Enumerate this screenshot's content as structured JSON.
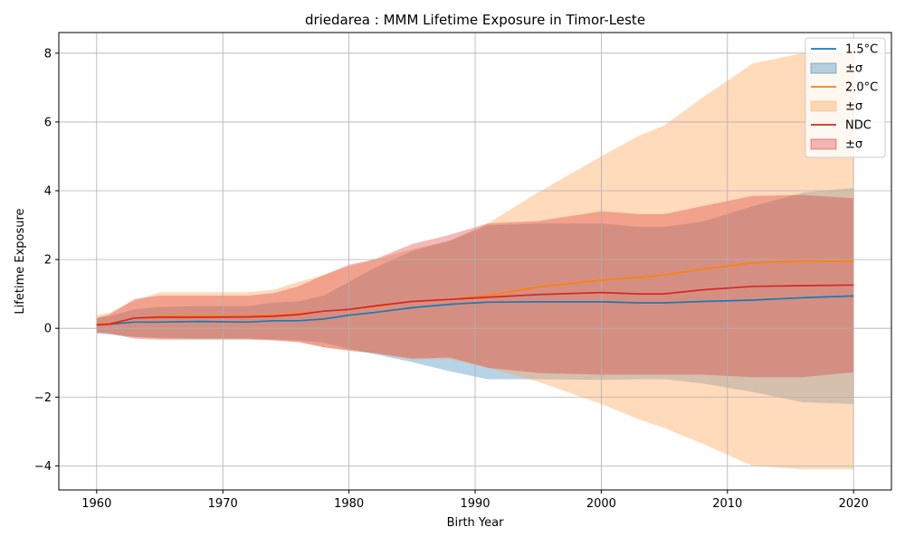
{
  "chart_data": {
    "type": "line",
    "title": "driedarea : MMM Lifetime Exposure in Timor-Leste",
    "xlabel": "Birth Year",
    "ylabel": "Lifetime Exposure",
    "xlim": [
      1957,
      2023
    ],
    "ylim": [
      -4.7,
      8.6
    ],
    "xticks": [
      1960,
      1970,
      1980,
      1990,
      2000,
      2010,
      2020
    ],
    "yticks": [
      -4,
      -2,
      0,
      2,
      4,
      6,
      8
    ],
    "grid": true,
    "legend_position": "top-right",
    "series": [
      {
        "name": "1.5°C",
        "band_label": "±σ",
        "color": "#1f77b4",
        "band_color": "#1f77b4",
        "x": [
          1960,
          1961,
          1963,
          1965,
          1968,
          1972,
          1974,
          1976,
          1978,
          1980,
          1982,
          1985,
          1988,
          1991,
          1995,
          2000,
          2003,
          2005,
          2008,
          2012,
          2016,
          2020
        ],
        "y": [
          0.1,
          0.12,
          0.18,
          0.18,
          0.2,
          0.18,
          0.22,
          0.22,
          0.27,
          0.38,
          0.46,
          0.6,
          0.7,
          0.76,
          0.77,
          0.77,
          0.74,
          0.74,
          0.78,
          0.82,
          0.89,
          0.94
        ],
        "upper": [
          0.3,
          0.35,
          0.55,
          0.62,
          0.65,
          0.65,
          0.75,
          0.78,
          0.95,
          1.35,
          1.75,
          2.25,
          2.55,
          3.0,
          3.05,
          3.05,
          2.95,
          2.95,
          3.1,
          3.55,
          3.95,
          4.08
        ],
        "lower": [
          -0.15,
          -0.18,
          -0.25,
          -0.28,
          -0.3,
          -0.3,
          -0.32,
          -0.35,
          -0.42,
          -0.6,
          -0.75,
          -0.98,
          -1.25,
          -1.48,
          -1.48,
          -1.5,
          -1.48,
          -1.48,
          -1.6,
          -1.85,
          -2.15,
          -2.2
        ]
      },
      {
        "name": "2.0°C",
        "band_label": "±σ",
        "color": "#ff7f0e",
        "band_color": "#ffa65c",
        "x": [
          1960,
          1961,
          1963,
          1965,
          1968,
          1972,
          1974,
          1976,
          1978,
          1980,
          1982,
          1985,
          1988,
          1991,
          1995,
          2000,
          2003,
          2005,
          2008,
          2012,
          2016,
          2020
        ],
        "y": [
          0.12,
          0.14,
          0.3,
          0.35,
          0.36,
          0.36,
          0.38,
          0.43,
          0.5,
          0.55,
          0.63,
          0.78,
          0.84,
          0.95,
          1.2,
          1.4,
          1.48,
          1.55,
          1.72,
          1.9,
          1.96,
          1.95
        ],
        "upper": [
          0.38,
          0.45,
          0.8,
          1.05,
          1.05,
          1.05,
          1.12,
          1.35,
          1.55,
          1.8,
          2.0,
          2.3,
          2.55,
          3.05,
          3.95,
          5.0,
          5.6,
          5.9,
          6.7,
          7.7,
          8.0,
          8.0
        ],
        "lower": [
          -0.12,
          -0.15,
          -0.25,
          -0.3,
          -0.3,
          -0.3,
          -0.35,
          -0.4,
          -0.55,
          -0.65,
          -0.72,
          -0.9,
          -0.9,
          -1.15,
          -1.55,
          -2.2,
          -2.65,
          -2.9,
          -3.35,
          -4.0,
          -4.1,
          -4.1
        ]
      },
      {
        "name": "NDC",
        "band_label": "±σ",
        "color": "#d62728",
        "band_color": "#d62728",
        "x": [
          1960,
          1961,
          1963,
          1965,
          1968,
          1972,
          1974,
          1976,
          1978,
          1980,
          1982,
          1985,
          1988,
          1991,
          1995,
          2000,
          2003,
          2005,
          2008,
          2012,
          2016,
          2020
        ],
        "y": [
          0.1,
          0.12,
          0.3,
          0.32,
          0.32,
          0.33,
          0.35,
          0.4,
          0.5,
          0.55,
          0.65,
          0.78,
          0.84,
          0.9,
          0.98,
          1.04,
          1.0,
          1.0,
          1.12,
          1.22,
          1.24,
          1.26
        ],
        "upper": [
          0.3,
          0.4,
          0.85,
          0.95,
          0.95,
          0.95,
          1.02,
          1.22,
          1.55,
          1.85,
          2.0,
          2.45,
          2.72,
          3.05,
          3.12,
          3.4,
          3.32,
          3.32,
          3.55,
          3.85,
          3.88,
          3.78
        ],
        "lower": [
          -0.12,
          -0.15,
          -0.3,
          -0.33,
          -0.33,
          -0.33,
          -0.35,
          -0.4,
          -0.55,
          -0.65,
          -0.72,
          -0.88,
          -0.85,
          -1.15,
          -1.3,
          -1.35,
          -1.35,
          -1.35,
          -1.35,
          -1.42,
          -1.42,
          -1.28
        ]
      }
    ]
  }
}
